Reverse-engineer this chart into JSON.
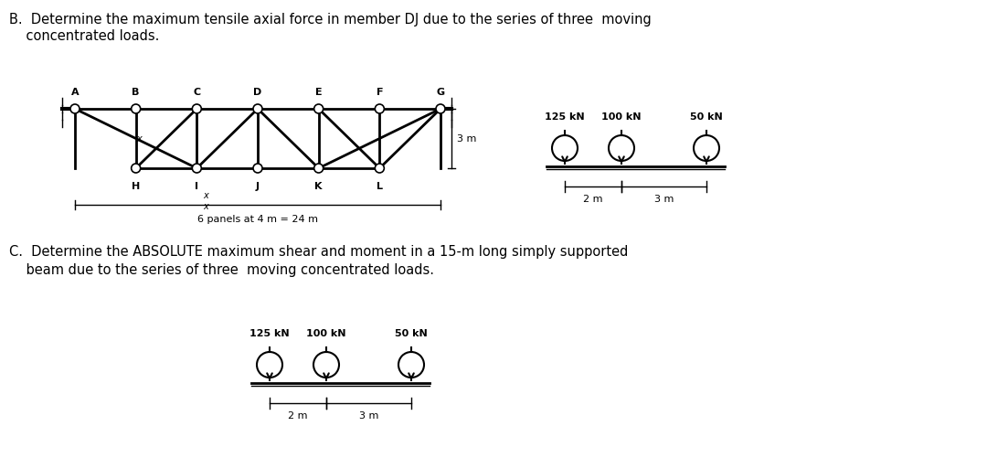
{
  "bg_color": "#ffffff",
  "title_B_line1": "B.  Determine the maximum tensile axial force in member DJ due to the series of three  moving",
  "title_B_line2": "    concentrated loads.",
  "title_C_line1": "C.  Determine the ABSOLUTE maximum shear and moment in a 15-m long simply supported",
  "title_C_line2": "    beam due to the series of three  moving concentrated loads.",
  "truss_top_labels": [
    "A",
    "B",
    "C",
    "D",
    "E",
    "F",
    "G"
  ],
  "truss_bot_labels": [
    "H",
    "I",
    "J",
    "K",
    "L"
  ],
  "loads_B_labels": [
    "125 kN",
    "100 kN",
    "50 kN"
  ],
  "loads_C_labels": [
    "125 kN",
    "100 kN",
    "50 kN"
  ],
  "dim_2m": "2 m",
  "dim_3m": "3 m",
  "dim_panels": "6 panels at 4 m = 24 m",
  "dim_3m_truss": "3 m"
}
